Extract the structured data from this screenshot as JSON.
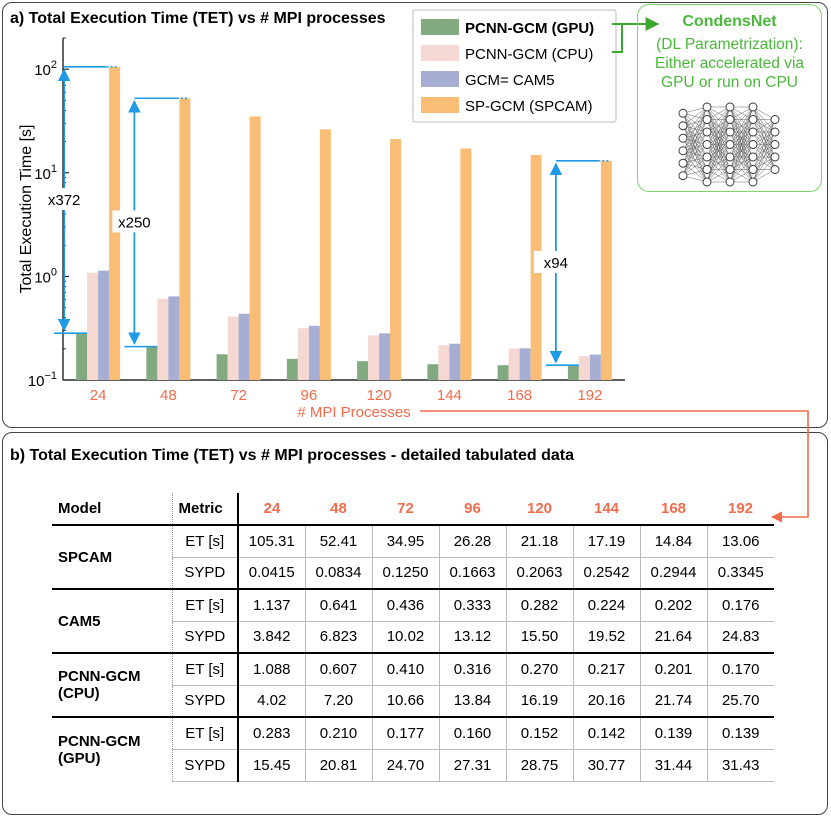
{
  "panel_a_title": "a) Total Execution Time (TET) vs # MPI processes",
  "panel_b_title": "b) Total Execution Time (TET) vs # MPI processes - detailed tabulated data",
  "colors": {
    "gpu": "#82aa80",
    "cpu": "#f5d8d2",
    "cam5": "#a6aed3",
    "spcam": "#f9bd76",
    "accent_red": "#f26b4b",
    "annot_blue": "#1e9ae6",
    "green": "#4ab83a"
  },
  "chart_data": {
    "type": "bar",
    "ylabel": "Total Execution Time [s]",
    "xlabel": "# MPI Processes",
    "yscale": "log",
    "ylim": [
      0.1,
      200
    ],
    "yticks": [
      {
        "value": 100,
        "label": "10",
        "exp": "2"
      },
      {
        "value": 10,
        "label": "10",
        "exp": "1"
      },
      {
        "value": 1,
        "label": "10",
        "exp": "0"
      },
      {
        "value": 0.1,
        "label": "10",
        "exp": "−1"
      }
    ],
    "categories": [
      "24",
      "48",
      "72",
      "96",
      "120",
      "144",
      "168",
      "192"
    ],
    "series": [
      {
        "name": "PCNN-GCM (GPU)",
        "color_key": "gpu",
        "values": [
          0.283,
          0.21,
          0.177,
          0.16,
          0.152,
          0.142,
          0.139,
          0.139
        ]
      },
      {
        "name": "PCNN-GCM (CPU)",
        "color_key": "cpu",
        "values": [
          1.088,
          0.607,
          0.41,
          0.316,
          0.27,
          0.217,
          0.201,
          0.17
        ]
      },
      {
        "name": "GCM= CAM5",
        "color_key": "cam5",
        "values": [
          1.137,
          0.641,
          0.436,
          0.333,
          0.282,
          0.224,
          0.202,
          0.176
        ]
      },
      {
        "name": "SP-GCM (SPCAM)",
        "color_key": "spcam",
        "values": [
          105.31,
          52.41,
          34.95,
          26.28,
          21.18,
          17.19,
          14.84,
          13.06
        ]
      }
    ],
    "annotations": [
      {
        "label": "x372",
        "category": "24",
        "from": 0.283,
        "to": 105.31
      },
      {
        "label": "x250",
        "category": "48",
        "from": 0.21,
        "to": 52.41
      },
      {
        "label": "x94",
        "category": "192",
        "from": 0.139,
        "to": 13.06
      }
    ],
    "legend_position": "top-right"
  },
  "side_box": {
    "title": "CondensNet",
    "desc_lines": [
      "(DL Parametrization):",
      "Either accelerated via",
      "GPU or run on CPU"
    ],
    "icon": "neural-network-icon"
  },
  "table": {
    "headers": {
      "model": "Model",
      "metric": "Metric"
    },
    "procs": [
      "24",
      "48",
      "72",
      "96",
      "120",
      "144",
      "168",
      "192"
    ],
    "groups": [
      {
        "model": "SPCAM",
        "rows": [
          {
            "metric": "ET [s]",
            "values": [
              "105.31",
              "52.41",
              "34.95",
              "26.28",
              "21.18",
              "17.19",
              "14.84",
              "13.06"
            ]
          },
          {
            "metric": "SYPD",
            "values": [
              "0.0415",
              "0.0834",
              "0.1250",
              "0.1663",
              "0.2063",
              "0.2542",
              "0.2944",
              "0.3345"
            ]
          }
        ]
      },
      {
        "model": "CAM5",
        "rows": [
          {
            "metric": "ET [s]",
            "values": [
              "1.137",
              "0.641",
              "0.436",
              "0.333",
              "0.282",
              "0.224",
              "0.202",
              "0.176"
            ]
          },
          {
            "metric": "SYPD",
            "values": [
              "3.842",
              "6.823",
              "10.02",
              "13.12",
              "15.50",
              "19.52",
              "21.64",
              "24.83"
            ]
          }
        ]
      },
      {
        "model": "PCNN-GCM\n(CPU)",
        "rows": [
          {
            "metric": "ET [s]",
            "values": [
              "1.088",
              "0.607",
              "0.410",
              "0.316",
              "0.270",
              "0.217",
              "0.201",
              "0.170"
            ]
          },
          {
            "metric": "SYPD",
            "values": [
              "4.02",
              "7.20",
              "10.66",
              "13.84",
              "16.19",
              "20.16",
              "21.74",
              "25.70"
            ]
          }
        ]
      },
      {
        "model": "PCNN-GCM\n(GPU)",
        "rows": [
          {
            "metric": "ET [s]",
            "values": [
              "0.283",
              "0.210",
              "0.177",
              "0.160",
              "0.152",
              "0.142",
              "0.139",
              "0.139"
            ]
          },
          {
            "metric": "SYPD",
            "values": [
              "15.45",
              "20.81",
              "24.70",
              "27.31",
              "28.75",
              "30.77",
              "31.44",
              "31.43"
            ]
          }
        ]
      }
    ]
  }
}
